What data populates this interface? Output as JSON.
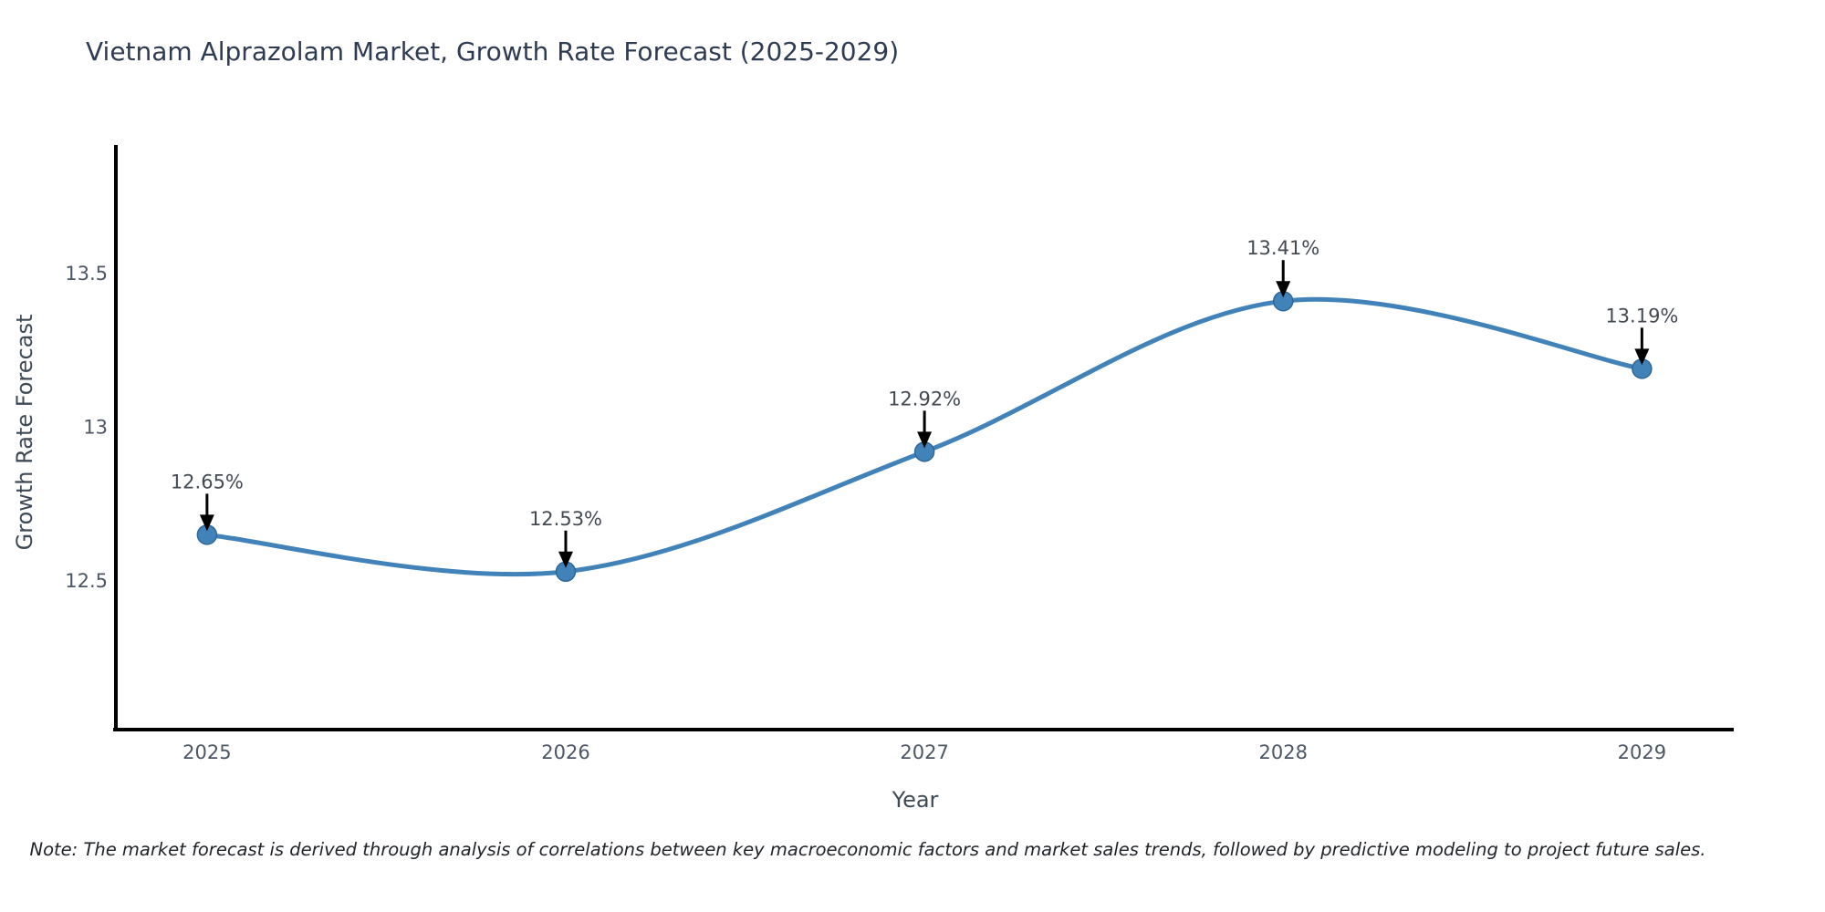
{
  "page": {
    "background": "#ffffff"
  },
  "chart_data": {
    "type": "line",
    "title": "Vietnam Alprazolam Market, Growth Rate Forecast (2025-2029)",
    "xlabel": "Year",
    "ylabel": "Growth Rate Forecast",
    "x": [
      2025,
      2026,
      2027,
      2028,
      2029
    ],
    "x_tick_labels": [
      "2025",
      "2026",
      "2027",
      "2028",
      "2029"
    ],
    "series": [
      {
        "name": "Growth Rate Forecast",
        "values": [
          12.65,
          12.53,
          12.92,
          13.41,
          13.19
        ]
      }
    ],
    "point_labels": [
      "12.65%",
      "12.53%",
      "12.92%",
      "13.41%",
      "13.19%"
    ],
    "y_ticks": [
      {
        "value": 12.5,
        "label": "12.5"
      },
      {
        "value": 13,
        "label": "13"
      },
      {
        "value": 13.5,
        "label": "13.5"
      }
    ],
    "xlim": [
      2024.746,
      2029.256
    ],
    "ylim": [
      12.016,
      13.918
    ],
    "grid": false,
    "legend": "none",
    "smooth": true,
    "colors": {
      "line": "#4183b8",
      "marker": "#4183b8",
      "marker_edge": "#2f6699",
      "arrow": "#000000",
      "spine": "#000000",
      "tick_label": "#4c5664",
      "annotation_label": "#444a52"
    }
  },
  "footer": {
    "note": "Note: The market forecast is derived through analysis of correlations between key macroeconomic factors and market sales trends, followed by predictive modeling to project future sales."
  }
}
